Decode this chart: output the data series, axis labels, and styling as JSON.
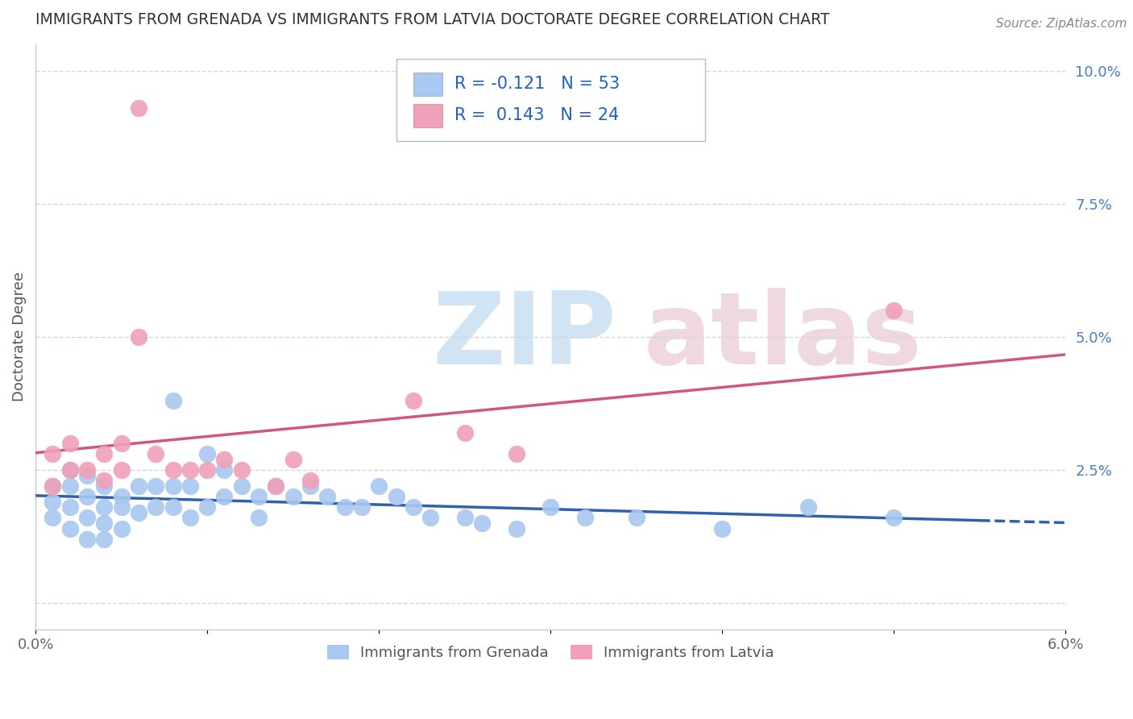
{
  "title": "IMMIGRANTS FROM GRENADA VS IMMIGRANTS FROM LATVIA DOCTORATE DEGREE CORRELATION CHART",
  "source": "Source: ZipAtlas.com",
  "ylabel": "Doctorate Degree",
  "xlim": [
    0.0,
    0.06
  ],
  "ylim": [
    -0.005,
    0.105
  ],
  "plot_ylim": [
    0.0,
    0.1
  ],
  "grenada_color": "#a8c8f0",
  "latvia_color": "#f0a0b8",
  "grenada_line_color": "#3060b0",
  "latvia_line_color": "#d05878",
  "grenada_R": -0.121,
  "grenada_N": 53,
  "latvia_R": 0.143,
  "latvia_N": 24,
  "legend_label_1": "Immigrants from Grenada",
  "legend_label_2": "Immigrants from Latvia",
  "grenada_x": [
    0.001,
    0.001,
    0.001,
    0.002,
    0.002,
    0.002,
    0.002,
    0.003,
    0.003,
    0.003,
    0.003,
    0.004,
    0.004,
    0.004,
    0.004,
    0.005,
    0.005,
    0.005,
    0.006,
    0.006,
    0.007,
    0.007,
    0.008,
    0.008,
    0.008,
    0.009,
    0.009,
    0.01,
    0.01,
    0.011,
    0.011,
    0.012,
    0.013,
    0.013,
    0.014,
    0.015,
    0.016,
    0.017,
    0.018,
    0.019,
    0.02,
    0.021,
    0.022,
    0.023,
    0.025,
    0.026,
    0.028,
    0.03,
    0.032,
    0.035,
    0.04,
    0.045,
    0.05
  ],
  "grenada_y": [
    0.022,
    0.019,
    0.016,
    0.025,
    0.022,
    0.018,
    0.014,
    0.024,
    0.02,
    0.016,
    0.012,
    0.022,
    0.018,
    0.015,
    0.012,
    0.02,
    0.018,
    0.014,
    0.022,
    0.017,
    0.022,
    0.018,
    0.038,
    0.022,
    0.018,
    0.022,
    0.016,
    0.028,
    0.018,
    0.025,
    0.02,
    0.022,
    0.02,
    0.016,
    0.022,
    0.02,
    0.022,
    0.02,
    0.018,
    0.018,
    0.022,
    0.02,
    0.018,
    0.016,
    0.016,
    0.015,
    0.014,
    0.018,
    0.016,
    0.016,
    0.014,
    0.018,
    0.016
  ],
  "latvia_x": [
    0.001,
    0.001,
    0.002,
    0.002,
    0.003,
    0.004,
    0.004,
    0.005,
    0.005,
    0.006,
    0.007,
    0.008,
    0.009,
    0.01,
    0.011,
    0.012,
    0.014,
    0.015,
    0.016,
    0.022,
    0.025,
    0.028,
    0.05,
    0.006
  ],
  "latvia_y": [
    0.028,
    0.022,
    0.03,
    0.025,
    0.025,
    0.028,
    0.023,
    0.03,
    0.025,
    0.093,
    0.028,
    0.025,
    0.025,
    0.025,
    0.027,
    0.025,
    0.022,
    0.027,
    0.023,
    0.038,
    0.032,
    0.028,
    0.055,
    0.05
  ],
  "yticks_right": [
    0.0,
    0.025,
    0.05,
    0.075,
    0.1
  ],
  "yticklabels_right": [
    "",
    "2.5%",
    "5.0%",
    "7.5%",
    "10.0%"
  ],
  "grid_color": "#d0d8e8",
  "spine_color": "#c0c8d8"
}
